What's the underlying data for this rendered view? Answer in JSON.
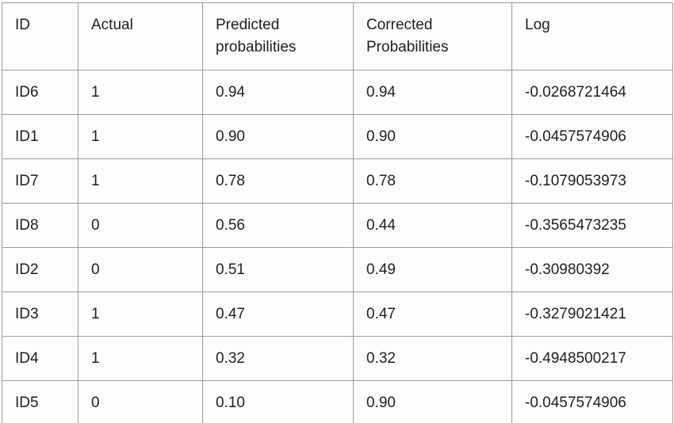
{
  "table": {
    "columns": [
      "ID",
      "Actual",
      "Predicted probabilities",
      "Corrected Probabilities",
      "Log"
    ],
    "rows": [
      {
        "id": "ID6",
        "actual": "1",
        "predicted": "0.94",
        "corrected": "0.94",
        "log": "-0.0268721464"
      },
      {
        "id": "ID1",
        "actual": "1",
        "predicted": "0.90",
        "corrected": "0.90",
        "log": "-0.0457574906"
      },
      {
        "id": "ID7",
        "actual": "1",
        "predicted": "0.78",
        "corrected": "0.78",
        "log": "-0.1079053973"
      },
      {
        "id": "ID8",
        "actual": "0",
        "predicted": "0.56",
        "corrected": "0.44",
        "log": "-0.3565473235"
      },
      {
        "id": "ID2",
        "actual": "0",
        "predicted": "0.51",
        "corrected": "0.49",
        "log": "-0.30980392"
      },
      {
        "id": "ID3",
        "actual": "1",
        "predicted": "0.47",
        "corrected": "0.47",
        "log": "-0.3279021421"
      },
      {
        "id": "ID4",
        "actual": "1",
        "predicted": "0.32",
        "corrected": "0.32",
        "log": "-0.4948500217"
      },
      {
        "id": "ID5",
        "actual": "0",
        "predicted": "0.10",
        "corrected": "0.90",
        "log": "-0.0457574906"
      }
    ]
  },
  "colors": {
    "border": "#9c9c9c",
    "text": "#1f1f1f",
    "background": "#fdfdfd"
  },
  "chart_data": {
    "type": "table",
    "title": "",
    "columns": [
      "ID",
      "Actual",
      "Predicted probabilities",
      "Corrected Probabilities",
      "Log"
    ],
    "rows": [
      [
        "ID6",
        1,
        0.94,
        0.94,
        -0.0268721464
      ],
      [
        "ID1",
        1,
        0.9,
        0.9,
        -0.0457574906
      ],
      [
        "ID7",
        1,
        0.78,
        0.78,
        -0.1079053973
      ],
      [
        "ID8",
        0,
        0.56,
        0.44,
        -0.3565473235
      ],
      [
        "ID2",
        0,
        0.51,
        0.49,
        -0.30980392
      ],
      [
        "ID3",
        1,
        0.47,
        0.47,
        -0.3279021421
      ],
      [
        "ID4",
        1,
        0.32,
        0.32,
        -0.4948500217
      ],
      [
        "ID5",
        0,
        0.1,
        0.9,
        -0.0457574906
      ]
    ]
  }
}
